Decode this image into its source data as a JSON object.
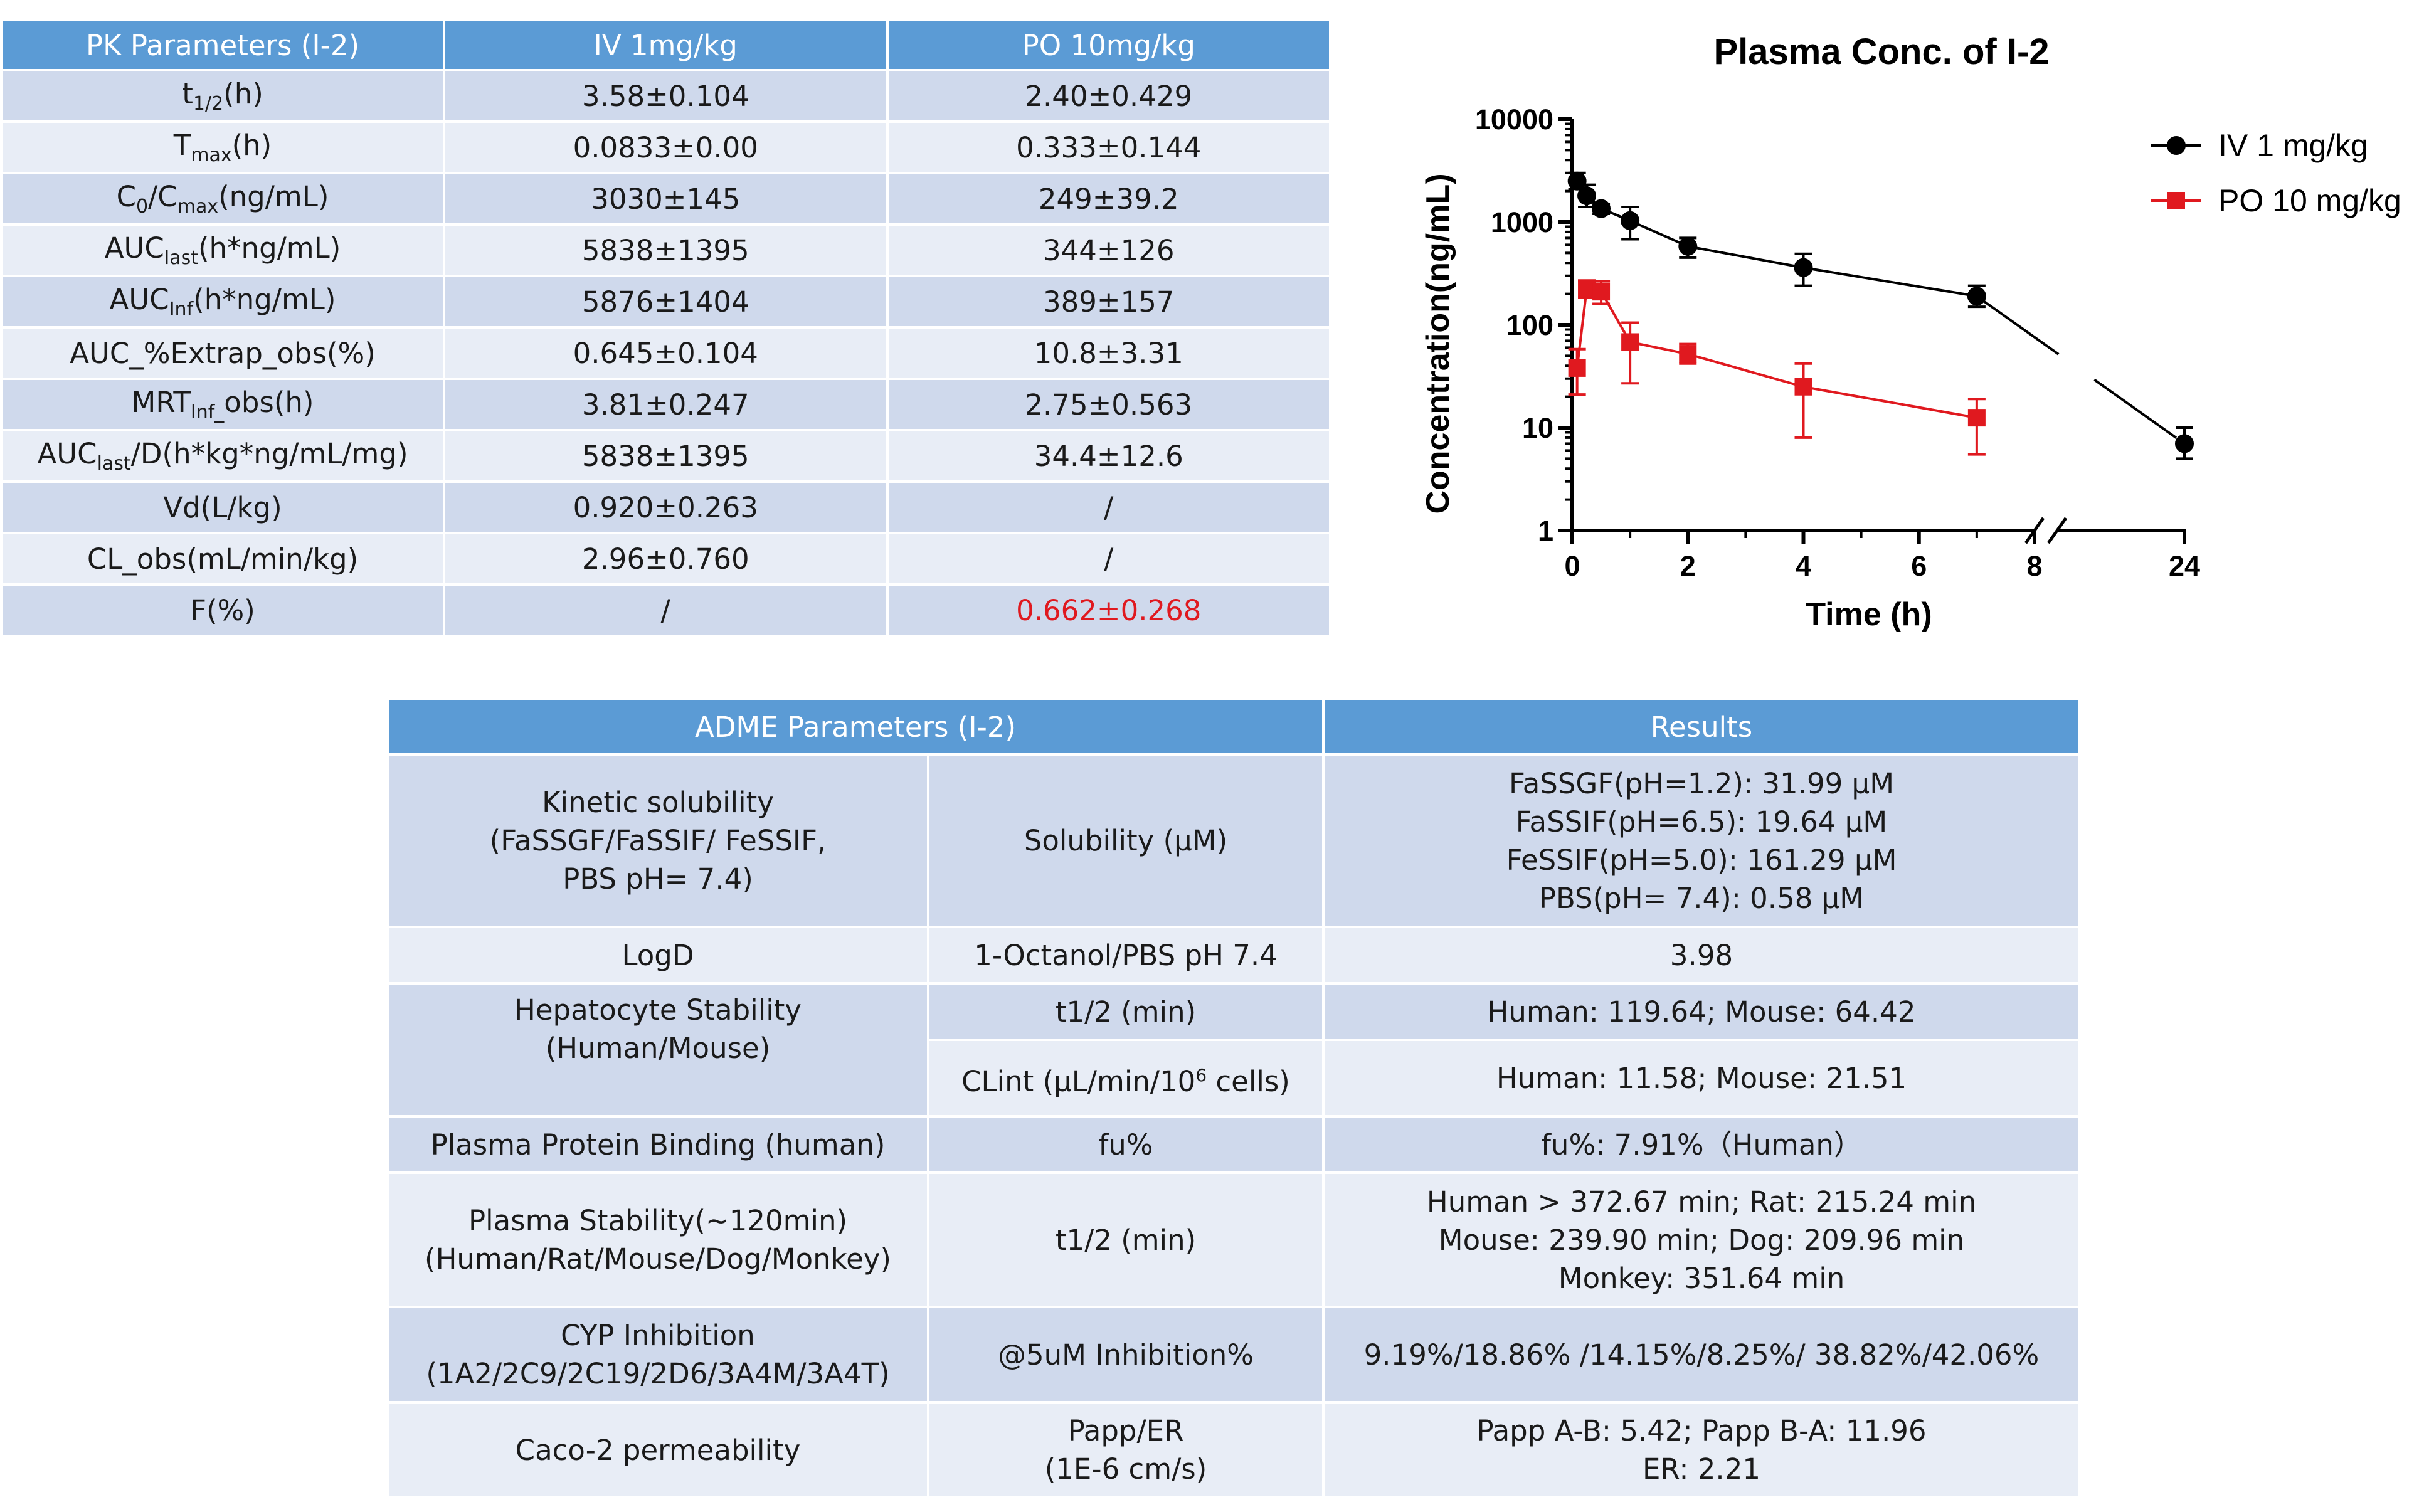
{
  "pk_table": {
    "headers": [
      "PK Parameters (I-2)",
      "IV 1mg/kg",
      "PO 10mg/kg"
    ],
    "rows": [
      {
        "param": {
          "pre": "t",
          "sub": "1/2",
          "post": "(h)"
        },
        "iv": "3.58±0.104",
        "po": "2.40±0.429"
      },
      {
        "param": {
          "pre": "T",
          "sub": "max",
          "post": "(h)"
        },
        "iv": "0.0833±0.00",
        "po": "0.333±0.144"
      },
      {
        "param": {
          "pre": "C",
          "sub": "0",
          "mid": "/C",
          "sub2": "max",
          "post": "(ng/mL)"
        },
        "iv": "3030±145",
        "po": "249±39.2"
      },
      {
        "param": {
          "pre": "AUC",
          "sub": "last",
          "post": "(h*ng/mL)"
        },
        "iv": "5838±1395",
        "po": "344±126"
      },
      {
        "param": {
          "pre": "AUC",
          "sub": "Inf",
          "post": "(h*ng/mL)"
        },
        "iv": "5876±1404",
        "po": "389±157"
      },
      {
        "param": {
          "pre": "AUC_%Extrap_obs(%)",
          "sub": "",
          "post": ""
        },
        "iv": "0.645±0.104",
        "po": "10.8±3.31"
      },
      {
        "param": {
          "pre": "MRT",
          "sub": "Inf_",
          "post": "obs(h)"
        },
        "iv": "3.81±0.247",
        "po": "2.75±0.563"
      },
      {
        "param": {
          "pre": "AUC",
          "sub": "last",
          "post": "/D(h*kg*ng/mL/mg)"
        },
        "iv": "5838±1395",
        "po": "34.4±12.6"
      },
      {
        "param": {
          "pre": "Vd(L/kg)",
          "sub": "",
          "post": ""
        },
        "iv": "0.920±0.263",
        "po": "/"
      },
      {
        "param": {
          "pre": "CL_obs(mL/min/kg)",
          "sub": "",
          "post": ""
        },
        "iv": "2.96±0.760",
        "po": "/"
      },
      {
        "param": {
          "pre": "F(%)",
          "sub": "",
          "post": ""
        },
        "iv": "/",
        "po": "0.662±0.268"
      }
    ]
  },
  "adme_table": {
    "headers": [
      "ADME Parameters (I-2)",
      "Results"
    ],
    "rows": {
      "kinetic": {
        "label": [
          "Kinetic solubility",
          "(FaSSGF/FaSSIF/ FeSSIF,",
          "PBS pH= 7.4)"
        ],
        "method": "Solubility (μM)",
        "results": [
          "FaSSGF(pH=1.2): 31.99 μM",
          "FaSSIF(pH=6.5): 19.64 μM",
          "FeSSIF(pH=5.0): 161.29 μM",
          "PBS(pH= 7.4):  0.58 μM"
        ]
      },
      "logd": {
        "label": "LogD",
        "method": "1-Octanol/PBS pH 7.4",
        "result": "3.98"
      },
      "hepatocyte": {
        "label": [
          "Hepatocyte Stability",
          "(Human/Mouse)"
        ],
        "method1": "t1/2 (min)",
        "result1": "Human: 119.64; Mouse: 64.42",
        "method2_pre": "CLint (μL/min/10",
        "method2_sup": "6",
        "method2_post": " cells)",
        "result2": "Human: 11.58; Mouse: 21.51"
      },
      "ppb": {
        "label": "Plasma Protein Binding (human)",
        "method": "fu%",
        "result": "fu%:  7.91%（Human）"
      },
      "plasma": {
        "label": [
          "Plasma Stability(~120min)",
          "(Human/Rat/Mouse/Dog/Monkey)"
        ],
        "method": "t1/2 (min)",
        "results": [
          "Human > 372.67 min; Rat: 215.24 min",
          "Mouse: 239.90 min; Dog: 209.96 min",
          "Monkey: 351.64 min"
        ]
      },
      "cyp": {
        "label": [
          "CYP Inhibition",
          "(1A2/2C9/2C19/2D6/3A4M/3A4T)"
        ],
        "method": "@5uM Inhibition%",
        "result": "9.19%/18.86% /14.15%/8.25%/ 38.82%/42.06%"
      },
      "caco2": {
        "label": "Caco-2 permeability",
        "method": [
          "Papp/ER",
          "(1E-6 cm/s)"
        ],
        "results": [
          "Papp A-B: 5.42;  Papp B-A: 11.96",
          "ER: 2.21"
        ]
      }
    }
  },
  "colors": {
    "header_blue": "#5b9bd5",
    "iv_series": "#000000",
    "po_series": "#e0191f"
  },
  "chart_data": {
    "type": "line",
    "title": "Plasma Conc. of I-2",
    "xlabel": "Time (h)",
    "ylabel": "Concentration(ng/mL)",
    "yscale": "log",
    "ylim": [
      1,
      10000
    ],
    "xlim": [
      0,
      24
    ],
    "x_axis_break": [
      8,
      24
    ],
    "xticks": [
      "0",
      "2",
      "4",
      "6",
      "8",
      "24"
    ],
    "yticks": [
      "1",
      "10",
      "100",
      "1000",
      "10000"
    ],
    "legend_position": "top-right",
    "series": [
      {
        "name": "IV 1 mg/kg",
        "color": "#000000",
        "marker": "circle",
        "x": [
          0.083,
          0.25,
          0.5,
          1,
          2,
          4,
          7,
          24
        ],
        "y": [
          2500,
          1800,
          1350,
          1030,
          580,
          360,
          190,
          7
        ],
        "err_high": [
          3000,
          2300,
          1500,
          1400,
          700,
          490,
          240,
          10
        ],
        "err_low": [
          2100,
          1400,
          1200,
          680,
          450,
          240,
          150,
          5
        ]
      },
      {
        "name": "PO 10 mg/kg",
        "color": "#e0191f",
        "marker": "square",
        "x": [
          0.083,
          0.25,
          0.5,
          1,
          2,
          4,
          7
        ],
        "y": [
          38,
          225,
          210,
          68,
          52,
          25,
          12.5
        ],
        "err_high": [
          58,
          270,
          265,
          105,
          65,
          42,
          19
        ],
        "err_low": [
          21,
          185,
          160,
          27,
          42,
          8,
          5.5
        ]
      }
    ]
  }
}
